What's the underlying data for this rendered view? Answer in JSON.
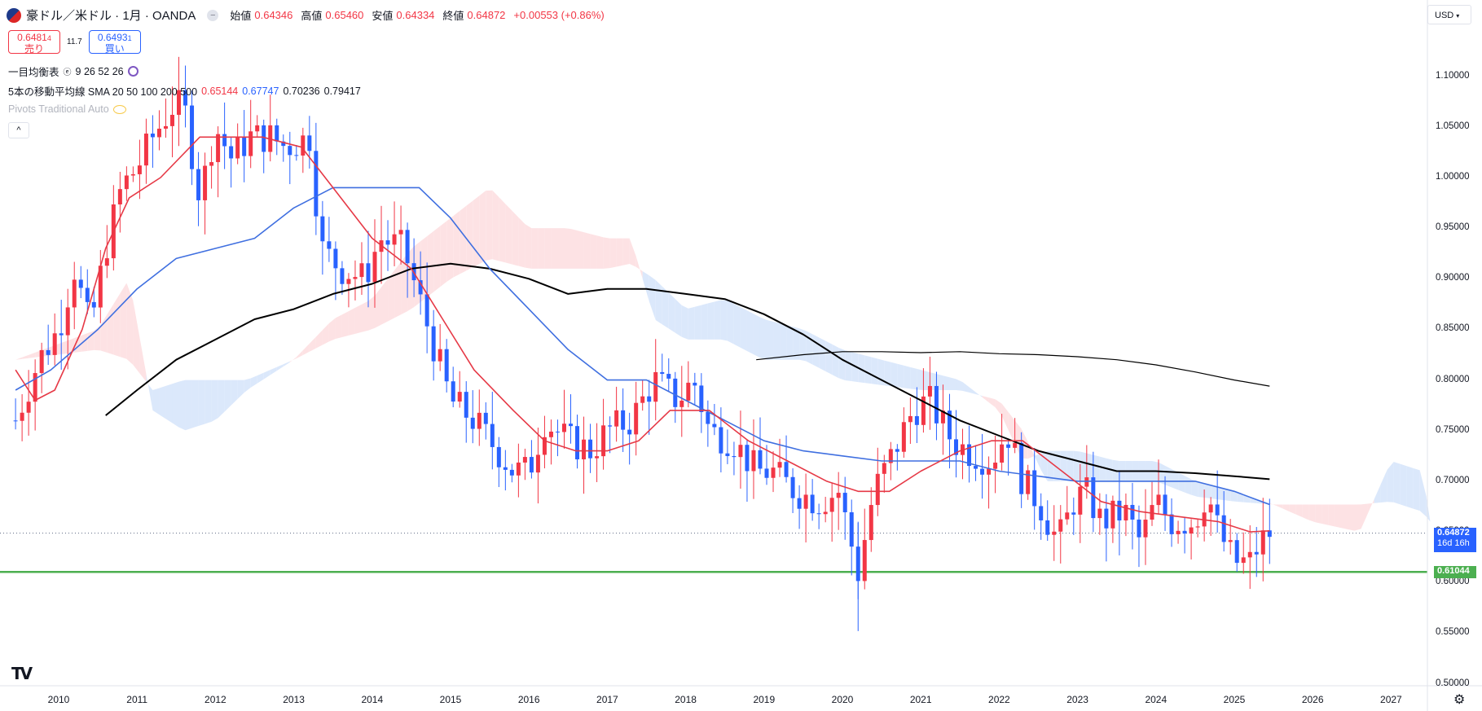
{
  "header": {
    "symbol_title": "豪ドル／米ドル · 1月 · OANDA",
    "open_label": "始値",
    "open_value": "0.64346",
    "high_label": "高値",
    "high_value": "0.65460",
    "low_label": "安値",
    "low_value": "0.64334",
    "close_label": "終値",
    "close_value": "0.64872",
    "change": "+0.00553 (+0.86%)"
  },
  "trade": {
    "sell_price": "0.6481",
    "sell_price_small": "4",
    "sell_label": "売り",
    "spread": "11.7",
    "buy_price": "0.6493",
    "buy_price_small": "1",
    "buy_label": "買い"
  },
  "indicators": {
    "ichimoku_label": "一目均衡表",
    "ichimoku_params": "9 26 52 26",
    "sma_label": "5本の移動平均線 SMA 20 50 100 200 500",
    "sma_values": [
      "0.65144",
      "0.67747",
      "0.70236",
      "0.79417"
    ],
    "pivots_label": "Pivots Traditional Auto"
  },
  "currency": "USD",
  "price_labels": {
    "current_price": "0.64872",
    "countdown": "16d 16h",
    "support_price": "0.61044"
  },
  "colors": {
    "up": "#f23645",
    "down": "#2962ff",
    "sma20": "#e63946",
    "sma50": "#3f6fe0",
    "sma100": "#000000",
    "sma200": "#000000",
    "cloud_bull": "#fde2e4",
    "cloud_bear": "#dbe8fb",
    "support": "#4caf50"
  },
  "chart_data": {
    "type": "candlestick",
    "title": "豪ドル／米ドル · 1月 · OANDA",
    "ylim": [
      0.5,
      1.12
    ],
    "y_ticks": [
      "0.50000",
      "0.55000",
      "0.60000",
      "0.65000",
      "0.70000",
      "0.75000",
      "0.80000",
      "0.85000",
      "0.90000",
      "0.95000",
      "1.00000",
      "1.05000",
      "1.10000"
    ],
    "x_ticks": [
      "2010",
      "2011",
      "2012",
      "2013",
      "2014",
      "2015",
      "2016",
      "2017",
      "2018",
      "2019",
      "2020",
      "2021",
      "2022",
      "2023",
      "2024",
      "2025",
      "2026",
      "2027"
    ],
    "anchors": {
      "close": [
        [
          2009.45,
          0.76
        ],
        [
          2009.75,
          0.82
        ],
        [
          2010.0,
          0.85
        ],
        [
          2010.2,
          0.91
        ],
        [
          2010.4,
          0.85
        ],
        [
          2010.6,
          0.93
        ],
        [
          2010.8,
          0.99
        ],
        [
          2011.0,
          1.01
        ],
        [
          2011.2,
          1.04
        ],
        [
          2011.45,
          1.07
        ],
        [
          2011.6,
          1.07
        ],
        [
          2011.8,
          0.98
        ],
        [
          2012.0,
          1.05
        ],
        [
          2012.2,
          1.02
        ],
        [
          2012.45,
          1.04
        ],
        [
          2012.7,
          1.04
        ],
        [
          2012.9,
          1.03
        ],
        [
          2013.2,
          1.04
        ],
        [
          2013.35,
          0.93
        ],
        [
          2013.6,
          0.91
        ],
        [
          2013.9,
          0.9
        ],
        [
          2014.1,
          0.94
        ],
        [
          2014.4,
          0.93
        ],
        [
          2014.6,
          0.88
        ],
        [
          2014.8,
          0.83
        ],
        [
          2015.0,
          0.78
        ],
        [
          2015.3,
          0.76
        ],
        [
          2015.6,
          0.73
        ],
        [
          2015.8,
          0.71
        ],
        [
          2016.0,
          0.71
        ],
        [
          2016.2,
          0.76
        ],
        [
          2016.5,
          0.74
        ],
        [
          2016.8,
          0.73
        ],
        [
          2017.0,
          0.75
        ],
        [
          2017.3,
          0.76
        ],
        [
          2017.6,
          0.8
        ],
        [
          2017.9,
          0.78
        ],
        [
          2018.1,
          0.8
        ],
        [
          2018.3,
          0.75
        ],
        [
          2018.6,
          0.74
        ],
        [
          2018.9,
          0.71
        ],
        [
          2019.1,
          0.71
        ],
        [
          2019.4,
          0.69
        ],
        [
          2019.7,
          0.68
        ],
        [
          2019.95,
          0.69
        ],
        [
          2020.2,
          0.61
        ],
        [
          2020.4,
          0.69
        ],
        [
          2020.6,
          0.72
        ],
        [
          2020.9,
          0.77
        ],
        [
          2021.1,
          0.78
        ],
        [
          2021.4,
          0.74
        ],
        [
          2021.6,
          0.73
        ],
        [
          2021.9,
          0.72
        ],
        [
          2022.1,
          0.75
        ],
        [
          2022.3,
          0.7
        ],
        [
          2022.5,
          0.68
        ],
        [
          2022.75,
          0.64
        ],
        [
          2022.95,
          0.68
        ],
        [
          2023.1,
          0.69
        ],
        [
          2023.3,
          0.66
        ],
        [
          2023.6,
          0.67
        ],
        [
          2023.8,
          0.64
        ],
        [
          2024.0,
          0.68
        ],
        [
          2024.2,
          0.66
        ],
        [
          2024.5,
          0.66
        ],
        [
          2024.65,
          0.69
        ],
        [
          2024.8,
          0.65
        ],
        [
          2025.0,
          0.62
        ],
        [
          2025.2,
          0.62
        ],
        [
          2025.33,
          0.64
        ],
        [
          2025.45,
          0.6487
        ]
      ]
    },
    "sma20": [
      [
        2009.45,
        0.81
      ],
      [
        2009.7,
        0.78
      ],
      [
        2009.95,
        0.79
      ],
      [
        2010.3,
        0.85
      ],
      [
        2010.6,
        0.93
      ],
      [
        2010.9,
        0.98
      ],
      [
        2011.3,
        1.0
      ],
      [
        2011.8,
        1.04
      ],
      [
        2012.2,
        1.04
      ],
      [
        2012.6,
        1.04
      ],
      [
        2013.1,
        1.03
      ],
      [
        2013.5,
        0.99
      ],
      [
        2014.0,
        0.94
      ],
      [
        2014.5,
        0.91
      ],
      [
        2014.9,
        0.86
      ],
      [
        2015.3,
        0.81
      ],
      [
        2015.8,
        0.77
      ],
      [
        2016.2,
        0.74
      ],
      [
        2016.6,
        0.73
      ],
      [
        2017.0,
        0.73
      ],
      [
        2017.4,
        0.74
      ],
      [
        2017.8,
        0.77
      ],
      [
        2018.3,
        0.77
      ],
      [
        2018.8,
        0.74
      ],
      [
        2019.3,
        0.72
      ],
      [
        2019.8,
        0.7
      ],
      [
        2020.2,
        0.69
      ],
      [
        2020.6,
        0.69
      ],
      [
        2021.0,
        0.71
      ],
      [
        2021.5,
        0.73
      ],
      [
        2021.9,
        0.74
      ],
      [
        2022.3,
        0.74
      ],
      [
        2022.8,
        0.71
      ],
      [
        2023.3,
        0.68
      ],
      [
        2023.8,
        0.67
      ],
      [
        2024.3,
        0.665
      ],
      [
        2024.8,
        0.66
      ],
      [
        2025.2,
        0.65
      ],
      [
        2025.45,
        0.651
      ]
    ],
    "sma50": [
      [
        2009.45,
        0.79
      ],
      [
        2009.9,
        0.81
      ],
      [
        2010.5,
        0.85
      ],
      [
        2011.0,
        0.89
      ],
      [
        2011.5,
        0.92
      ],
      [
        2012.0,
        0.93
      ],
      [
        2012.5,
        0.94
      ],
      [
        2013.0,
        0.97
      ],
      [
        2013.5,
        0.99
      ],
      [
        2014.0,
        0.99
      ],
      [
        2014.6,
        0.99
      ],
      [
        2015.0,
        0.96
      ],
      [
        2015.5,
        0.91
      ],
      [
        2016.0,
        0.87
      ],
      [
        2016.5,
        0.83
      ],
      [
        2017.0,
        0.8
      ],
      [
        2017.5,
        0.8
      ],
      [
        2018.0,
        0.78
      ],
      [
        2018.5,
        0.76
      ],
      [
        2019.0,
        0.74
      ],
      [
        2019.5,
        0.73
      ],
      [
        2020.0,
        0.725
      ],
      [
        2020.5,
        0.72
      ],
      [
        2021.0,
        0.72
      ],
      [
        2021.5,
        0.72
      ],
      [
        2022.0,
        0.71
      ],
      [
        2022.5,
        0.705
      ],
      [
        2023.0,
        0.7
      ],
      [
        2023.5,
        0.7
      ],
      [
        2024.0,
        0.7
      ],
      [
        2024.5,
        0.7
      ],
      [
        2025.0,
        0.69
      ],
      [
        2025.45,
        0.677
      ]
    ],
    "sma100": [
      [
        2010.6,
        0.765
      ],
      [
        2011.0,
        0.79
      ],
      [
        2011.5,
        0.82
      ],
      [
        2012.0,
        0.84
      ],
      [
        2012.5,
        0.86
      ],
      [
        2013.0,
        0.87
      ],
      [
        2013.5,
        0.885
      ],
      [
        2014.0,
        0.895
      ],
      [
        2014.5,
        0.91
      ],
      [
        2015.0,
        0.915
      ],
      [
        2015.5,
        0.91
      ],
      [
        2016.0,
        0.9
      ],
      [
        2016.5,
        0.885
      ],
      [
        2017.0,
        0.89
      ],
      [
        2017.5,
        0.89
      ],
      [
        2018.0,
        0.885
      ],
      [
        2018.5,
        0.88
      ],
      [
        2019.0,
        0.865
      ],
      [
        2019.5,
        0.845
      ],
      [
        2020.0,
        0.82
      ],
      [
        2020.5,
        0.8
      ],
      [
        2021.0,
        0.78
      ],
      [
        2021.5,
        0.76
      ],
      [
        2022.0,
        0.745
      ],
      [
        2022.5,
        0.73
      ],
      [
        2023.0,
        0.72
      ],
      [
        2023.5,
        0.71
      ],
      [
        2024.0,
        0.71
      ],
      [
        2024.5,
        0.708
      ],
      [
        2025.0,
        0.705
      ],
      [
        2025.45,
        0.702
      ]
    ],
    "sma200": [
      [
        2018.9,
        0.82
      ],
      [
        2019.5,
        0.825
      ],
      [
        2020.0,
        0.828
      ],
      [
        2020.5,
        0.828
      ],
      [
        2021.0,
        0.827
      ],
      [
        2021.5,
        0.828
      ],
      [
        2022.0,
        0.826
      ],
      [
        2022.5,
        0.825
      ],
      [
        2023.0,
        0.823
      ],
      [
        2023.5,
        0.82
      ],
      [
        2024.0,
        0.815
      ],
      [
        2024.5,
        0.808
      ],
      [
        2025.0,
        0.8
      ],
      [
        2025.45,
        0.794
      ]
    ],
    "cloud": {
      "span_a": [
        [
          2009.45,
          0.82
        ],
        [
          2010.5,
          0.85
        ],
        [
          2010.9,
          0.9
        ],
        [
          2011.2,
          0.77
        ],
        [
          2011.6,
          0.75
        ],
        [
          2012.0,
          0.76
        ],
        [
          2012.4,
          0.79
        ],
        [
          2013.0,
          0.82
        ],
        [
          2013.5,
          0.86
        ],
        [
          2014.0,
          0.88
        ],
        [
          2014.5,
          0.93
        ],
        [
          2015.0,
          0.96
        ],
        [
          2015.5,
          0.99
        ],
        [
          2016.0,
          0.95
        ],
        [
          2016.5,
          0.95
        ],
        [
          2017.0,
          0.94
        ],
        [
          2017.3,
          0.94
        ],
        [
          2017.6,
          0.86
        ],
        [
          2018.0,
          0.84
        ],
        [
          2018.5,
          0.84
        ],
        [
          2019.0,
          0.82
        ],
        [
          2019.5,
          0.82
        ],
        [
          2020.0,
          0.8
        ],
        [
          2020.5,
          0.795
        ],
        [
          2021.0,
          0.79
        ],
        [
          2021.5,
          0.79
        ],
        [
          2022.0,
          0.78
        ],
        [
          2022.3,
          0.75
        ],
        [
          2022.6,
          0.7
        ],
        [
          2023.0,
          0.7
        ],
        [
          2023.5,
          0.7
        ],
        [
          2024.0,
          0.7
        ],
        [
          2024.5,
          0.685
        ],
        [
          2025.0,
          0.68
        ],
        [
          2025.5,
          0.677
        ],
        [
          2026.0,
          0.677
        ],
        [
          2026.6,
          0.677
        ],
        [
          2027.0,
          0.68
        ],
        [
          2027.4,
          0.67
        ],
        [
          2027.5,
          0.66
        ]
      ],
      "span_b": [
        [
          2009.45,
          0.82
        ],
        [
          2010.5,
          0.83
        ],
        [
          2010.9,
          0.82
        ],
        [
          2011.2,
          0.79
        ],
        [
          2011.6,
          0.8
        ],
        [
          2012.0,
          0.8
        ],
        [
          2012.4,
          0.8
        ],
        [
          2013.0,
          0.82
        ],
        [
          2013.5,
          0.84
        ],
        [
          2014.0,
          0.85
        ],
        [
          2014.5,
          0.87
        ],
        [
          2015.0,
          0.9
        ],
        [
          2015.5,
          0.92
        ],
        [
          2016.0,
          0.91
        ],
        [
          2016.5,
          0.91
        ],
        [
          2017.0,
          0.91
        ],
        [
          2017.3,
          0.915
        ],
        [
          2017.6,
          0.9
        ],
        [
          2018.0,
          0.87
        ],
        [
          2018.5,
          0.88
        ],
        [
          2019.0,
          0.86
        ],
        [
          2019.5,
          0.85
        ],
        [
          2020.0,
          0.83
        ],
        [
          2020.5,
          0.82
        ],
        [
          2021.0,
          0.81
        ],
        [
          2021.5,
          0.8
        ],
        [
          2022.0,
          0.77
        ],
        [
          2022.3,
          0.72
        ],
        [
          2022.6,
          0.73
        ],
        [
          2023.0,
          0.73
        ],
        [
          2023.5,
          0.72
        ],
        [
          2024.0,
          0.72
        ],
        [
          2024.5,
          0.7
        ],
        [
          2025.0,
          0.69
        ],
        [
          2025.5,
          0.677
        ],
        [
          2026.0,
          0.66
        ],
        [
          2026.6,
          0.65
        ],
        [
          2027.0,
          0.72
        ],
        [
          2027.4,
          0.71
        ],
        [
          2027.5,
          0.66
        ]
      ]
    },
    "support_level": 0.61044,
    "current_price": 0.64872
  }
}
